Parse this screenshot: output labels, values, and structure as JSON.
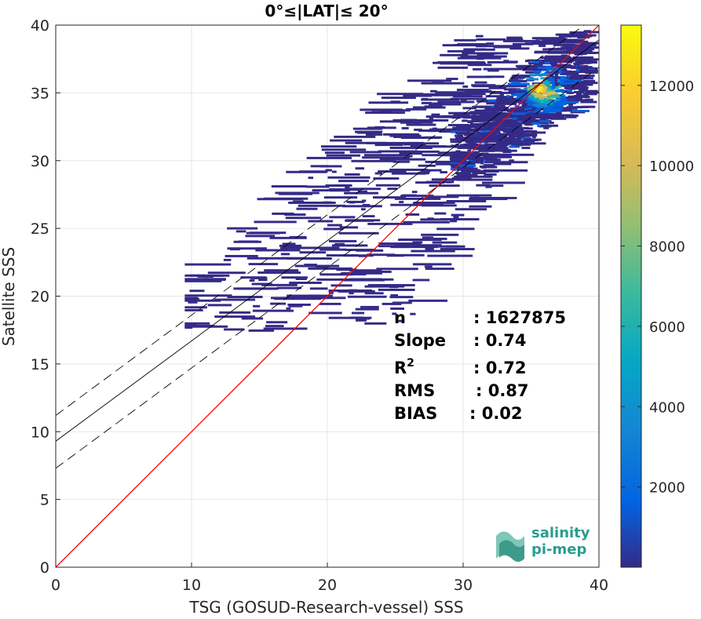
{
  "chart_data": {
    "type": "heatmap",
    "title": "0°≤|LAT|≤ 20°",
    "xlabel": "TSG (GOSUD-Research-vessel) SSS",
    "ylabel": "Satellite SSS",
    "xlim": [
      0,
      40
    ],
    "ylim": [
      0,
      40
    ],
    "x_ticks": [
      0,
      10,
      20,
      30,
      40
    ],
    "y_ticks": [
      0,
      5,
      10,
      15,
      20,
      25,
      30,
      35,
      40
    ],
    "grid": true,
    "one_to_one_line": {
      "color": "#ff0000",
      "x": [
        0,
        40
      ],
      "y": [
        0,
        40
      ]
    },
    "regression_line": {
      "slope": 0.74,
      "intercept": 9.3,
      "color": "#000000",
      "style": "solid"
    },
    "regression_bounds": [
      {
        "slope": 0.74,
        "intercept": 11.2,
        "style": "dashed"
      },
      {
        "slope": 0.74,
        "intercept": 7.3,
        "style": "dashed"
      }
    ],
    "density_peak": {
      "x": 35.5,
      "y": 35.3,
      "count": 13500
    },
    "colorbar": {
      "ticks": [
        2000,
        4000,
        6000,
        8000,
        10000,
        12000
      ],
      "range": [
        0,
        13500
      ],
      "colormap": "parula",
      "colors": [
        "#352a87",
        "#0363e1",
        "#1485d4",
        "#06a7c6",
        "#38b99e",
        "#92bf73",
        "#d9ba56",
        "#fcce2e",
        "#f9fb0e"
      ]
    },
    "stats": [
      {
        "label": "n",
        "sep": ":",
        "value": "1627875"
      },
      {
        "label": "Slope",
        "sep": ":",
        "value": "0.74"
      },
      {
        "label": "R",
        "sup": "2",
        "sep": ":",
        "value": "0.72"
      },
      {
        "label": "RMS",
        "sep": ":",
        "value": "0.87"
      },
      {
        "label": "BIAS",
        "sep": ":",
        "value": "0.02"
      }
    ]
  },
  "logo": {
    "line1": "salinity",
    "line2": "pi-mep"
  }
}
